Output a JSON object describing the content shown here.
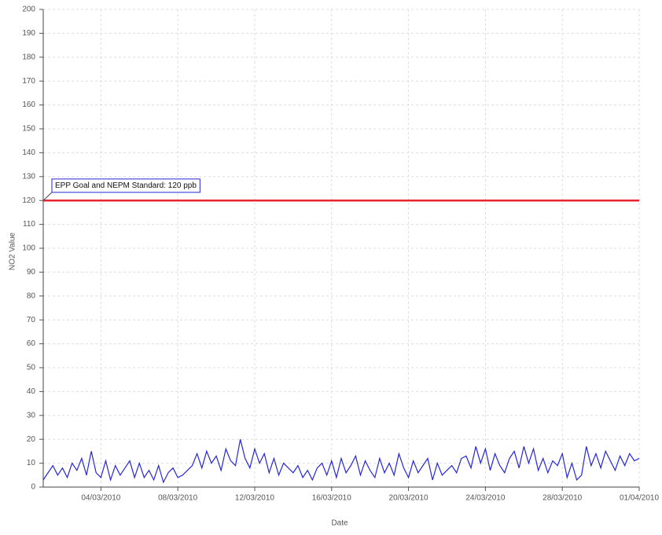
{
  "chart_data": {
    "type": "line",
    "y_label": "NO2 Value",
    "x_label": "Date",
    "xlim": [
      "2010-03-01 00:00",
      "2010-04-01 00:00"
    ],
    "xticks": [
      {
        "value": "2010-03-04 00:00",
        "label": "04/03/2010"
      },
      {
        "value": "2010-03-08 00:00",
        "label": "08/03/2010"
      },
      {
        "value": "2010-03-12 00:00",
        "label": "12/03/2010"
      },
      {
        "value": "2010-03-16 00:00",
        "label": "16/03/2010"
      },
      {
        "value": "2010-03-20 00:00",
        "label": "20/03/2010"
      },
      {
        "value": "2010-03-24 00:00",
        "label": "24/03/2010"
      },
      {
        "value": "2010-03-28 00:00",
        "label": "28/03/2010"
      },
      {
        "value": "2010-04-01 00:00",
        "label": "01/04/2010"
      }
    ],
    "ylim": [
      0,
      200
    ],
    "yticks": [
      0,
      10,
      20,
      30,
      40,
      50,
      60,
      70,
      80,
      90,
      100,
      110,
      120,
      130,
      140,
      150,
      160,
      170,
      180,
      190,
      200
    ],
    "grid": true,
    "reference_lines": [
      {
        "value": 120,
        "label": "EPP Goal and NEPM Standard: 120 ppb",
        "color": "#e8242c"
      }
    ],
    "x": [
      "2010-03-01 00:00",
      "2010-03-01 06:00",
      "2010-03-01 12:00",
      "2010-03-01 18:00",
      "2010-03-02 00:00",
      "2010-03-02 06:00",
      "2010-03-02 12:00",
      "2010-03-02 18:00",
      "2010-03-03 00:00",
      "2010-03-03 06:00",
      "2010-03-03 12:00",
      "2010-03-03 18:00",
      "2010-03-04 00:00",
      "2010-03-04 06:00",
      "2010-03-04 12:00",
      "2010-03-04 18:00",
      "2010-03-05 00:00",
      "2010-03-05 06:00",
      "2010-03-05 12:00",
      "2010-03-05 18:00",
      "2010-03-06 00:00",
      "2010-03-06 06:00",
      "2010-03-06 12:00",
      "2010-03-06 18:00",
      "2010-03-07 00:00",
      "2010-03-07 06:00",
      "2010-03-07 12:00",
      "2010-03-07 18:00",
      "2010-03-08 00:00",
      "2010-03-08 06:00",
      "2010-03-08 12:00",
      "2010-03-08 18:00",
      "2010-03-09 00:00",
      "2010-03-09 06:00",
      "2010-03-09 12:00",
      "2010-03-09 18:00",
      "2010-03-10 00:00",
      "2010-03-10 06:00",
      "2010-03-10 12:00",
      "2010-03-10 18:00",
      "2010-03-11 00:00",
      "2010-03-11 06:00",
      "2010-03-11 12:00",
      "2010-03-11 18:00",
      "2010-03-12 00:00",
      "2010-03-12 06:00",
      "2010-03-12 12:00",
      "2010-03-12 18:00",
      "2010-03-13 00:00",
      "2010-03-13 06:00",
      "2010-03-13 12:00",
      "2010-03-13 18:00",
      "2010-03-14 00:00",
      "2010-03-14 06:00",
      "2010-03-14 12:00",
      "2010-03-14 18:00",
      "2010-03-15 00:00",
      "2010-03-15 06:00",
      "2010-03-15 12:00",
      "2010-03-15 18:00",
      "2010-03-16 00:00",
      "2010-03-16 06:00",
      "2010-03-16 12:00",
      "2010-03-16 18:00",
      "2010-03-17 00:00",
      "2010-03-17 06:00",
      "2010-03-17 12:00",
      "2010-03-17 18:00",
      "2010-03-18 00:00",
      "2010-03-18 06:00",
      "2010-03-18 12:00",
      "2010-03-18 18:00",
      "2010-03-19 00:00",
      "2010-03-19 06:00",
      "2010-03-19 12:00",
      "2010-03-19 18:00",
      "2010-03-20 00:00",
      "2010-03-20 06:00",
      "2010-03-20 12:00",
      "2010-03-20 18:00",
      "2010-03-21 00:00",
      "2010-03-21 06:00",
      "2010-03-21 12:00",
      "2010-03-21 18:00",
      "2010-03-22 00:00",
      "2010-03-22 06:00",
      "2010-03-22 12:00",
      "2010-03-22 18:00",
      "2010-03-23 00:00",
      "2010-03-23 06:00",
      "2010-03-23 12:00",
      "2010-03-23 18:00",
      "2010-03-24 00:00",
      "2010-03-24 06:00",
      "2010-03-24 12:00",
      "2010-03-24 18:00",
      "2010-03-25 00:00",
      "2010-03-25 06:00",
      "2010-03-25 12:00",
      "2010-03-25 18:00",
      "2010-03-26 00:00",
      "2010-03-26 06:00",
      "2010-03-26 12:00",
      "2010-03-26 18:00",
      "2010-03-27 00:00",
      "2010-03-27 06:00",
      "2010-03-27 12:00",
      "2010-03-27 18:00",
      "2010-03-28 00:00",
      "2010-03-28 06:00",
      "2010-03-28 12:00",
      "2010-03-28 18:00",
      "2010-03-29 00:00",
      "2010-03-29 06:00",
      "2010-03-29 12:00",
      "2010-03-29 18:00",
      "2010-03-30 00:00",
      "2010-03-30 06:00",
      "2010-03-30 12:00",
      "2010-03-30 18:00",
      "2010-03-31 00:00",
      "2010-03-31 06:00",
      "2010-03-31 12:00",
      "2010-03-31 18:00",
      "2010-04-01 00:00"
    ],
    "series": [
      {
        "color": "#2626d9",
        "values": [
          3,
          6,
          9,
          5,
          8,
          4,
          10,
          7,
          12,
          5,
          15,
          6,
          4,
          11,
          3,
          9,
          5,
          8,
          11,
          4,
          10,
          4,
          7,
          3,
          9,
          2,
          6,
          8,
          4,
          5,
          7,
          9,
          14,
          8,
          15,
          10,
          13,
          7,
          16,
          11,
          9,
          20,
          12,
          8,
          16,
          10,
          14,
          6,
          12,
          5,
          10,
          8,
          6,
          9,
          4,
          7,
          3,
          8,
          10,
          5,
          11,
          4,
          12,
          6,
          9,
          13,
          5,
          11,
          7,
          4,
          12,
          6,
          10,
          5,
          14,
          8,
          4,
          11,
          6,
          9,
          12,
          3,
          10,
          5,
          7,
          9,
          6,
          12,
          13,
          8,
          17,
          10,
          16,
          7,
          14,
          9,
          6,
          12,
          15,
          8,
          17,
          10,
          16,
          7,
          12,
          6,
          11,
          9,
          14,
          4,
          10,
          3,
          5,
          17,
          9,
          14,
          8,
          15,
          11,
          7,
          13,
          9,
          14,
          11,
          12
        ]
      }
    ]
  }
}
